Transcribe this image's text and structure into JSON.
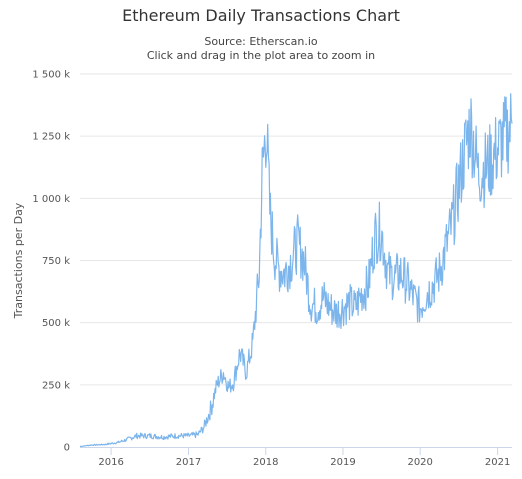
{
  "chart_data": {
    "type": "line",
    "title": "Ethereum Daily Transactions Chart",
    "subtitle": "Source: Etherscan.io",
    "hint": "Click and drag in the plot area to zoom in",
    "xlabel": "",
    "ylabel": "Transactions per Day",
    "xlim": [
      "2015-08-07",
      "2021-03-10"
    ],
    "ylim": [
      0,
      1500000
    ],
    "grid": true,
    "legend": "none",
    "x_ticks": [
      {
        "date": "2016-01-01",
        "label": "2016"
      },
      {
        "date": "2017-01-01",
        "label": "2017"
      },
      {
        "date": "2018-01-01",
        "label": "2018"
      },
      {
        "date": "2019-01-01",
        "label": "2019"
      },
      {
        "date": "2020-01-01",
        "label": "2020"
      },
      {
        "date": "2021-01-01",
        "label": "2021"
      }
    ],
    "y_ticks": [
      {
        "value": 0,
        "label": "0"
      },
      {
        "value": 250000,
        "label": "250 k"
      },
      {
        "value": 500000,
        "label": "500 k"
      },
      {
        "value": 750000,
        "label": "750 k"
      },
      {
        "value": 1000000,
        "label": "1 000 k"
      },
      {
        "value": 1250000,
        "label": "1 250 k"
      },
      {
        "value": 1500000,
        "label": "1 500 k"
      }
    ],
    "series": [
      {
        "color": "#7cb5ec",
        "points": [
          [
            "2015-08-07",
            2000
          ],
          [
            "2015-10-01",
            8000
          ],
          [
            "2015-12-01",
            10000
          ],
          [
            "2016-02-01",
            18000
          ],
          [
            "2016-03-15",
            30000
          ],
          [
            "2016-05-01",
            45000
          ],
          [
            "2016-07-01",
            45000
          ],
          [
            "2016-09-01",
            40000
          ],
          [
            "2016-11-01",
            45000
          ],
          [
            "2017-01-01",
            45000
          ],
          [
            "2017-02-15",
            50000
          ],
          [
            "2017-03-15",
            80000
          ],
          [
            "2017-04-15",
            150000
          ],
          [
            "2017-05-15",
            250000
          ],
          [
            "2017-06-15",
            300000
          ],
          [
            "2017-07-10",
            240000
          ],
          [
            "2017-08-01",
            260000
          ],
          [
            "2017-09-01",
            380000
          ],
          [
            "2017-10-01",
            300000
          ],
          [
            "2017-11-01",
            420000
          ],
          [
            "2017-12-01",
            700000
          ],
          [
            "2017-12-15",
            1100000
          ],
          [
            "2018-01-04",
            1300000
          ],
          [
            "2018-01-20",
            950000
          ],
          [
            "2018-02-10",
            780000
          ],
          [
            "2018-03-01",
            720000
          ],
          [
            "2018-04-01",
            700000
          ],
          [
            "2018-05-01",
            750000
          ],
          [
            "2018-06-01",
            820000
          ],
          [
            "2018-07-01",
            750000
          ],
          [
            "2018-08-01",
            580000
          ],
          [
            "2018-09-01",
            560000
          ],
          [
            "2018-10-01",
            600000
          ],
          [
            "2018-11-01",
            560000
          ],
          [
            "2018-12-01",
            540000
          ],
          [
            "2019-01-01",
            560000
          ],
          [
            "2019-02-01",
            580000
          ],
          [
            "2019-03-01",
            560000
          ],
          [
            "2019-04-01",
            620000
          ],
          [
            "2019-05-01",
            650000
          ],
          [
            "2019-06-01",
            850000
          ],
          [
            "2019-07-01",
            870000
          ],
          [
            "2019-08-01",
            700000
          ],
          [
            "2019-09-01",
            680000
          ],
          [
            "2019-10-01",
            700000
          ],
          [
            "2019-11-01",
            660000
          ],
          [
            "2019-12-01",
            600000
          ],
          [
            "2020-01-01",
            560000
          ],
          [
            "2020-02-01",
            620000
          ],
          [
            "2020-03-01",
            650000
          ],
          [
            "2020-04-01",
            700000
          ],
          [
            "2020-05-01",
            800000
          ],
          [
            "2020-06-01",
            900000
          ],
          [
            "2020-07-01",
            1050000
          ],
          [
            "2020-08-01",
            1200000
          ],
          [
            "2020-08-25",
            1300000
          ],
          [
            "2020-09-15",
            1200000
          ],
          [
            "2020-10-01",
            1100000
          ],
          [
            "2020-11-01",
            1120000
          ],
          [
            "2020-12-01",
            1150000
          ],
          [
            "2021-01-01",
            1200000
          ],
          [
            "2021-02-01",
            1240000
          ],
          [
            "2021-03-10",
            1300000
          ]
        ]
      }
    ]
  }
}
